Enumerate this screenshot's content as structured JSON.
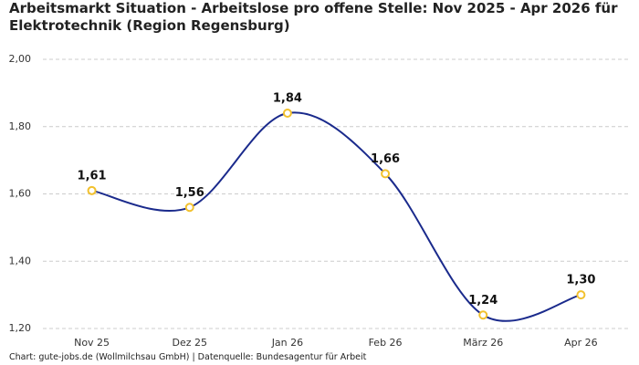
{
  "chart_data": {
    "type": "line",
    "title": "Arbeitsmarkt Situation - Arbeitslose pro offene Stelle: Nov 2025 - Apr 2026 für Elektrotechnik (Region Regensburg)",
    "source": "Chart: gute-jobs.de (Wollmilchsau GmbH) | Datenquelle: Bundesagentur für Arbeit",
    "categories": [
      "Nov 25",
      "Dez 25",
      "Jan 26",
      "Feb 26",
      "März 26",
      "Apr 26"
    ],
    "values": [
      1.61,
      1.56,
      1.84,
      1.66,
      1.24,
      1.3
    ],
    "value_labels": [
      "1,61",
      "1,56",
      "1,84",
      "1,66",
      "1,24",
      "1,30"
    ],
    "color": "#1a2a8c",
    "marker_color": "#f2c12e",
    "ylim": [
      1.2,
      2.0
    ],
    "yticks": [
      {
        "value": 1.2,
        "label": "1,20"
      },
      {
        "value": 1.4,
        "label": "1,40"
      },
      {
        "value": 1.6,
        "label": "1,60"
      },
      {
        "value": 1.8,
        "label": "1,80"
      },
      {
        "value": 2.0,
        "label": "2,00"
      }
    ],
    "grid": true
  }
}
